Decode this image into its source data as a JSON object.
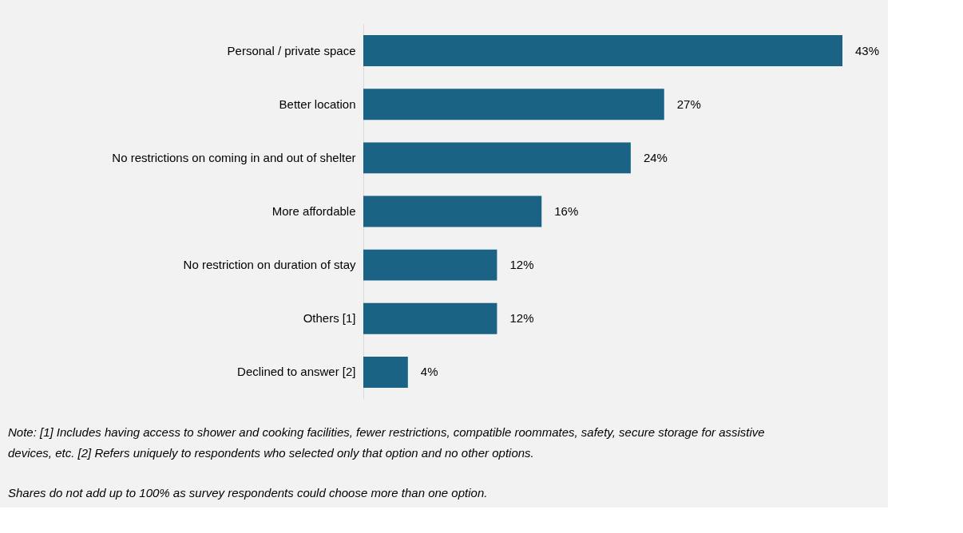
{
  "chart_data": {
    "type": "bar",
    "orientation": "horizontal",
    "categories": [
      "Personal / private space",
      "Better location",
      "No restrictions on coming in and out of shelter",
      "More affordable",
      "No restriction on duration of stay",
      "Others [1]",
      "Declined to answer [2]"
    ],
    "values": [
      43,
      27,
      24,
      16,
      12,
      12,
      4
    ],
    "value_labels": [
      "43%",
      "27%",
      "24%",
      "16%",
      "12%",
      "12%",
      "4%"
    ],
    "color": "#1a6385",
    "annotations": [
      "Note: [1] Includes having access to shower and cooking facilities, fewer restrictions, compatible roommates, safety, secure storage for assistive devices, etc. [2] Refers uniquely to respondents who selected only that option and no other options.",
      "Shares do not add up to 100% as survey respondents could choose more than one option."
    ]
  }
}
